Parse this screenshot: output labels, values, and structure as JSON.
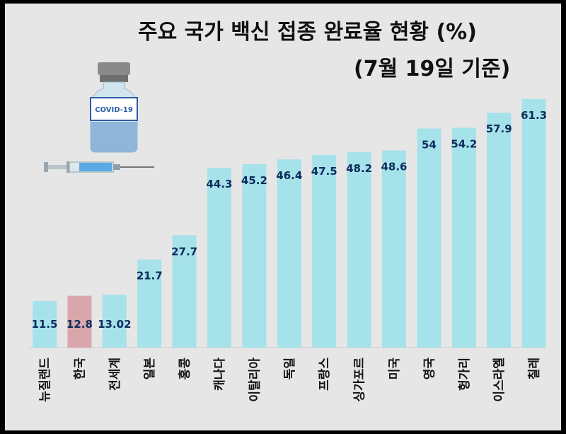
{
  "title_line1": "주요 국가 백신 접종 완료율 현황 (%)",
  "title_line2": "(7월 19일 기준)",
  "vial_label": "COVID-19",
  "colors": {
    "bar": "#a6e2ea",
    "highlight_bar": "#d9a7ab",
    "value_text": "#0d2b5c"
  },
  "chart_data": {
    "type": "bar",
    "title": "주요 국가 백신 접종 완료율 현황 (%) (7월 19일 기준)",
    "xlabel": "",
    "ylabel": "",
    "ylim": [
      0,
      62
    ],
    "highlight": "한국",
    "categories": [
      "뉴질랜드",
      "한국",
      "전세계",
      "일본",
      "홍콩",
      "캐나다",
      "이탈리아",
      "독일",
      "프랑스",
      "싱가포르",
      "미국",
      "영국",
      "헝가리",
      "이스라엘",
      "칠레"
    ],
    "values": [
      11.5,
      12.8,
      13.02,
      21.7,
      27.7,
      44.3,
      45.2,
      46.4,
      47.5,
      48.2,
      48.6,
      54,
      54.2,
      57.9,
      61.3
    ],
    "value_labels": [
      "11.5",
      "12.8",
      "13.02",
      "21.7",
      "27.7",
      "44.3",
      "45.2",
      "46.4",
      "47.5",
      "48.2",
      "48.6",
      "54",
      "54.2",
      "57.9",
      "61.3"
    ]
  }
}
